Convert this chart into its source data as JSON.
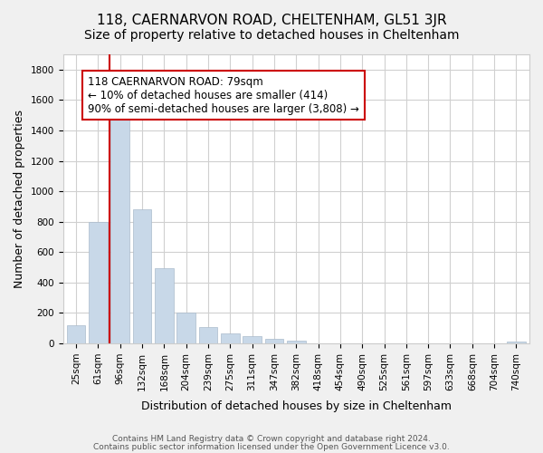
{
  "title": "118, CAERNARVON ROAD, CHELTENHAM, GL51 3JR",
  "subtitle": "Size of property relative to detached houses in Cheltenham",
  "xlabel": "Distribution of detached houses by size in Cheltenham",
  "ylabel": "Number of detached properties",
  "categories": [
    "25sqm",
    "61sqm",
    "96sqm",
    "132sqm",
    "168sqm",
    "204sqm",
    "239sqm",
    "275sqm",
    "311sqm",
    "347sqm",
    "382sqm",
    "418sqm",
    "454sqm",
    "490sqm",
    "525sqm",
    "561sqm",
    "597sqm",
    "633sqm",
    "668sqm",
    "704sqm",
    "740sqm"
  ],
  "values": [
    120,
    800,
    1470,
    880,
    495,
    205,
    105,
    65,
    50,
    30,
    20,
    0,
    0,
    0,
    0,
    0,
    0,
    0,
    0,
    0,
    10
  ],
  "bar_color": "#c8d8e8",
  "bar_edge_color": "#aabbcc",
  "property_line_color": "#cc0000",
  "annotation_line1": "118 CAERNARVON ROAD: 79sqm",
  "annotation_line2": "← 10% of detached houses are smaller (414)",
  "annotation_line3": "90% of semi-detached houses are larger (3,808) →",
  "ylim": [
    0,
    1900
  ],
  "yticks": [
    0,
    200,
    400,
    600,
    800,
    1000,
    1200,
    1400,
    1600,
    1800
  ],
  "background_color": "#f0f0f0",
  "plot_background_color": "#ffffff",
  "grid_color": "#d0d0d0",
  "footer_line1": "Contains HM Land Registry data © Crown copyright and database right 2024.",
  "footer_line2": "Contains public sector information licensed under the Open Government Licence v3.0.",
  "title_fontsize": 11,
  "subtitle_fontsize": 10,
  "xlabel_fontsize": 9,
  "ylabel_fontsize": 9,
  "tick_fontsize": 7.5,
  "annotation_fontsize": 8.5,
  "footer_fontsize": 6.5
}
